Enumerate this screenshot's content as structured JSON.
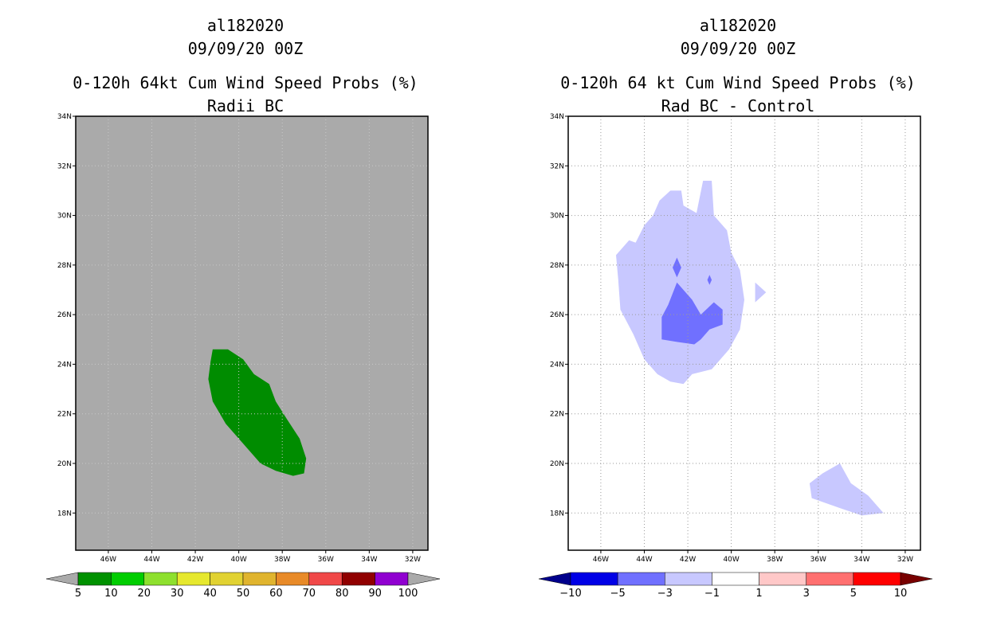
{
  "chart_data": [
    {
      "type": "contour_map",
      "title_lines": [
        "al182020",
        "09/09/20 00Z",
        "0-120h 64kt Cum Wind Speed Probs (%)",
        "Radii BC"
      ],
      "x_ticks": [
        "46W",
        "44W",
        "42W",
        "40W",
        "38W",
        "36W",
        "34W",
        "32W"
      ],
      "y_ticks": [
        "34N",
        "32N",
        "30N",
        "28N",
        "26N",
        "24N",
        "22N",
        "20N",
        "18N"
      ],
      "lon_range": [
        -47.5,
        -31.3
      ],
      "lat_range": [
        16.5,
        34
      ],
      "background_color": "#aaaaaa",
      "contours": [
        {
          "level": "5-10",
          "color": "#008c00",
          "outline_lonlat": [
            [
              -41.2,
              24.6
            ],
            [
              -40.5,
              24.6
            ],
            [
              -39.8,
              24.2
            ],
            [
              -39.3,
              23.6
            ],
            [
              -38.6,
              23.2
            ],
            [
              -38.3,
              22.5
            ],
            [
              -37.8,
              21.8
            ],
            [
              -37.2,
              21.0
            ],
            [
              -36.9,
              20.2
            ],
            [
              -37.0,
              19.6
            ],
            [
              -37.5,
              19.5
            ],
            [
              -38.3,
              19.7
            ],
            [
              -39.0,
              20.0
            ],
            [
              -39.8,
              20.8
            ],
            [
              -40.6,
              21.6
            ],
            [
              -41.2,
              22.5
            ],
            [
              -41.4,
              23.4
            ],
            [
              -41.3,
              24.1
            ]
          ]
        }
      ],
      "colorbar": {
        "labels": [
          "5",
          "10",
          "20",
          "30",
          "40",
          "50",
          "60",
          "70",
          "80",
          "90",
          "100"
        ],
        "colors": [
          "#009100",
          "#00cd00",
          "#8ee02e",
          "#e6e82e",
          "#e1d232",
          "#e0b42e",
          "#e88a28",
          "#f04848",
          "#900000",
          "#9000d0"
        ],
        "extend_color": "#aaaaaa"
      }
    },
    {
      "type": "contour_map",
      "title_lines": [
        "al182020",
        "09/09/20 00Z",
        "0-120h 64 kt Cum Wind Speed Probs (%)",
        "Rad BC - Control"
      ],
      "x_ticks": [
        "46W",
        "44W",
        "42W",
        "40W",
        "38W",
        "36W",
        "34W",
        "32W"
      ],
      "y_ticks": [
        "34N",
        "32N",
        "30N",
        "28N",
        "26N",
        "24N",
        "22N",
        "20N",
        "18N"
      ],
      "lon_range": [
        -47.5,
        -31.3
      ],
      "lat_range": [
        16.5,
        34
      ],
      "background_color": "#ffffff",
      "contours": [
        {
          "level": "-3 to -1",
          "color": "#c8c8ff",
          "outline_lonlat": [
            [
              -42.3,
              31.0
            ],
            [
              -42.2,
              30.4
            ],
            [
              -41.6,
              30.1
            ],
            [
              -41.3,
              31.4
            ],
            [
              -40.9,
              31.4
            ],
            [
              -40.8,
              30.0
            ],
            [
              -40.2,
              29.4
            ],
            [
              -40.0,
              28.5
            ],
            [
              -39.6,
              27.8
            ],
            [
              -39.4,
              26.6
            ],
            [
              -39.6,
              25.4
            ],
            [
              -40.1,
              24.6
            ],
            [
              -40.9,
              23.8
            ],
            [
              -41.8,
              23.6
            ],
            [
              -42.2,
              23.2
            ],
            [
              -42.8,
              23.3
            ],
            [
              -43.4,
              23.6
            ],
            [
              -44.0,
              24.2
            ],
            [
              -44.5,
              25.2
            ],
            [
              -45.1,
              26.2
            ],
            [
              -45.2,
              27.4
            ],
            [
              -45.3,
              28.4
            ],
            [
              -44.7,
              29.0
            ],
            [
              -44.4,
              28.9
            ],
            [
              -44.0,
              29.6
            ],
            [
              -43.6,
              30.0
            ],
            [
              -43.3,
              30.6
            ],
            [
              -42.8,
              31.0
            ]
          ]
        },
        {
          "level": "-3 to -1",
          "color": "#c8c8ff",
          "outline_lonlat": [
            [
              -38.9,
              27.3
            ],
            [
              -38.4,
              26.9
            ],
            [
              -38.9,
              26.5
            ]
          ]
        },
        {
          "level": "-3 to -1",
          "color": "#c8c8ff",
          "outline_lonlat": [
            [
              -35.0,
              20.0
            ],
            [
              -34.5,
              19.2
            ],
            [
              -33.7,
              18.7
            ],
            [
              -33.0,
              18.0
            ],
            [
              -34.0,
              17.9
            ],
            [
              -35.0,
              18.2
            ],
            [
              -36.3,
              18.6
            ],
            [
              -36.4,
              19.2
            ],
            [
              -35.8,
              19.6
            ]
          ]
        },
        {
          "level": "-5 to -3",
          "color": "#7070ff",
          "outline_lonlat": [
            [
              -42.5,
              27.3
            ],
            [
              -41.8,
              26.6
            ],
            [
              -41.4,
              26.0
            ],
            [
              -40.8,
              26.5
            ],
            [
              -40.4,
              26.2
            ],
            [
              -40.4,
              25.6
            ],
            [
              -41.0,
              25.4
            ],
            [
              -41.4,
              25.0
            ],
            [
              -41.7,
              24.8
            ],
            [
              -42.5,
              24.9
            ],
            [
              -43.2,
              25.0
            ],
            [
              -43.2,
              25.9
            ],
            [
              -42.9,
              26.4
            ]
          ]
        },
        {
          "level": "-5 to -3",
          "color": "#7070ff",
          "outline_lonlat": [
            [
              -42.5,
              28.3
            ],
            [
              -42.3,
              27.9
            ],
            [
              -42.5,
              27.5
            ],
            [
              -42.7,
              27.9
            ]
          ]
        },
        {
          "level": "-5 to -3",
          "color": "#7070ff",
          "outline_lonlat": [
            [
              -41.0,
              27.6
            ],
            [
              -40.9,
              27.4
            ],
            [
              -41.0,
              27.2
            ],
            [
              -41.1,
              27.4
            ]
          ]
        }
      ],
      "colorbar": {
        "labels": [
          "-10",
          "-5",
          "-3",
          "-1",
          "1",
          "3",
          "5",
          "10"
        ],
        "colors": [
          "#0000e6",
          "#7070ff",
          "#c8c8ff",
          "#ffffff",
          "#ffc8c8",
          "#ff7070",
          "#ff0000"
        ],
        "extend_low_color": "#00008c",
        "extend_high_color": "#780000"
      }
    }
  ]
}
